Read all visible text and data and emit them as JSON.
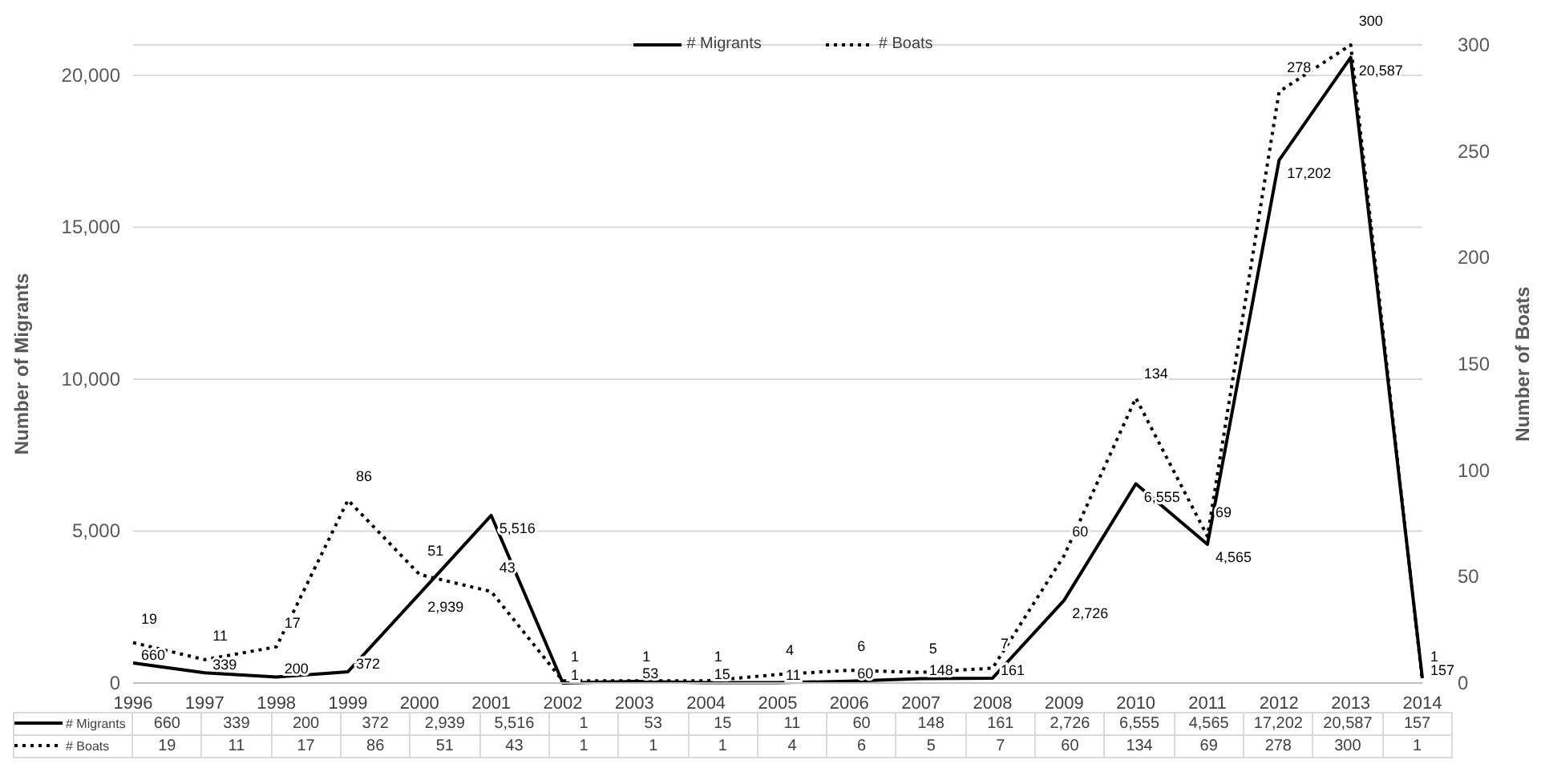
{
  "chart_data": {
    "type": "line",
    "ylabel": "Number of Migrants",
    "y2label": "Number of Boats",
    "categories": [
      "1996",
      "1997",
      "1998",
      "1999",
      "2000",
      "2001",
      "2002",
      "2003",
      "2004",
      "2005",
      "2006",
      "2007",
      "2008",
      "2009",
      "2010",
      "2011",
      "2012",
      "2013",
      "2014"
    ],
    "series": [
      {
        "name": "# Migrants",
        "color": "#000000",
        "line_style": "solid",
        "values": [
          660,
          339,
          200,
          372,
          2939,
          5516,
          1,
          53,
          15,
          11,
          60,
          148,
          161,
          2726,
          6555,
          4565,
          17202,
          20587,
          157
        ],
        "value_labels": [
          "660",
          "339",
          "200",
          "372",
          "2,939",
          "5,516",
          "1",
          "53",
          "15",
          "11",
          "60",
          "148",
          "161",
          "2,726",
          "6,555",
          "4,565",
          "17,202",
          "20,587",
          "157"
        ]
      },
      {
        "name": "# Boats",
        "color": "#000000",
        "line_style": "dotted",
        "axis": "y2",
        "values": [
          19,
          11,
          17,
          86,
          51,
          43,
          1,
          1,
          1,
          4,
          6,
          5,
          7,
          60,
          134,
          69,
          278,
          300,
          1
        ],
        "value_labels": [
          "19",
          "11",
          "17",
          "86",
          "51",
          "43",
          "1",
          "1",
          "1",
          "4",
          "6",
          "5",
          "7",
          "60",
          "134",
          "69",
          "278",
          "300",
          "1"
        ]
      }
    ],
    "ylim": [
      0,
      21000
    ],
    "yticks": [
      0,
      {
        "value": 5000,
        "label": "5,000"
      },
      {
        "value": 10000,
        "label": "10,000"
      },
      {
        "value": 15000,
        "label": "15,000"
      },
      {
        "value": 20000,
        "label": "20,000"
      }
    ],
    "y2lim": [
      0,
      300
    ],
    "y2ticks": [
      0,
      50,
      100,
      150,
      200,
      250,
      300
    ],
    "grid": "y",
    "legend": "top",
    "marker": "none"
  }
}
